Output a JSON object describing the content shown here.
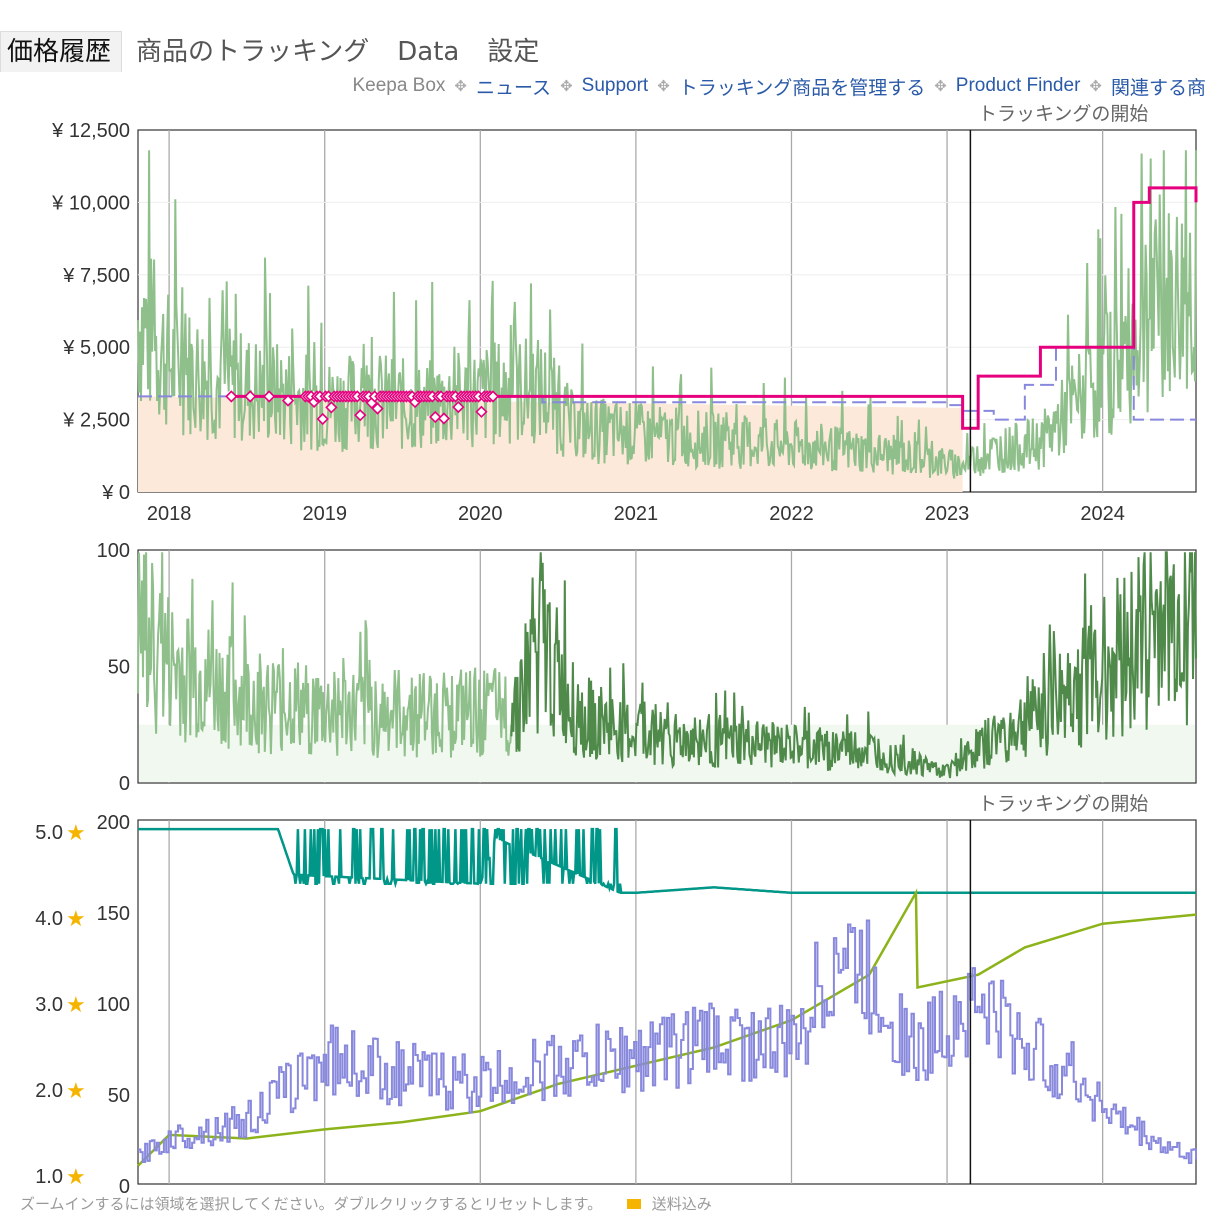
{
  "tabs": [
    {
      "label": "価格履歴",
      "active": true
    },
    {
      "label": "商品のトラッキング",
      "active": false
    },
    {
      "label": "Data",
      "active": false
    },
    {
      "label": "設定",
      "active": false
    }
  ],
  "links": {
    "keepa_box": "Keepa Box",
    "news": "ニュース",
    "support": "Support",
    "manage": "トラッキング商品を管理する",
    "finder": "Product Finder",
    "related": "関連する商"
  },
  "annotations": {
    "tracking_start_top": "トラッキングの開始",
    "tracking_start_bottom": "トラッキングの開始"
  },
  "footer": {
    "hint": "ズームインするには領域を選択してください。ダブルクリックするとリセットします。",
    "legend_shipping": "送料込み"
  },
  "colors": {
    "used_price": "#8fbf8a",
    "new_price": "#e6007e",
    "amazon_price": "#8888dd",
    "amazon_fill": "#fde9d9",
    "sales_rank_light": "#8fbf8a",
    "sales_rank_dark": "#4f8a4a",
    "rating": "#009688",
    "review_count": "#8cb31a",
    "offer_count": "#8888dd",
    "star": "#f5b400"
  },
  "chart_data": [
    {
      "type": "line",
      "name": "price-history",
      "x_ticks": [
        "2018",
        "2019",
        "2020",
        "2021",
        "2022",
        "2023",
        "2024"
      ],
      "y_ticks": [
        "¥ 0",
        "¥ 2,500",
        "¥ 5,000",
        "¥ 7,500",
        "¥ 10,000",
        "¥ 12,500"
      ],
      "ylim": [
        0,
        12500
      ],
      "xlim": [
        2017.8,
        2024.6
      ],
      "tracking_start": 2023.15,
      "series": [
        {
          "role": "used",
          "x": [
            2017.8,
            2018.0,
            2018.3,
            2018.6,
            2019.0,
            2019.3,
            2019.6,
            2020.0,
            2020.2,
            2020.4,
            2020.6,
            2021.0,
            2021.5,
            2022.0,
            2022.5,
            2023.0,
            2023.1,
            2023.3,
            2023.6,
            2023.9,
            2024.1,
            2024.3,
            2024.6
          ],
          "y": [
            6000,
            4500,
            3800,
            3500,
            3000,
            3200,
            2900,
            3300,
            3500,
            3500,
            2200,
            2000,
            1800,
            1600,
            1400,
            1000,
            900,
            1400,
            1700,
            3500,
            4500,
            6000,
            7000
          ]
        },
        {
          "role": "amazon",
          "x": [
            2017.8,
            2020.3,
            2020.4,
            2023.0,
            2023.1,
            2023.3,
            2023.5,
            2023.7,
            2024.2,
            2024.6
          ],
          "y": [
            3300,
            3300,
            3100,
            3000,
            2800,
            2500,
            3700,
            5000,
            2500,
            2500
          ]
        },
        {
          "role": "new",
          "x": [
            2018.4,
            2019.0,
            2019.3,
            2019.6,
            2020.0,
            2020.3,
            2020.5,
            2021.0,
            2022.0,
            2022.9,
            2023.1,
            2023.2,
            2023.4,
            2023.6,
            2024.2,
            2024.3,
            2024.6
          ],
          "y": [
            3300,
            3300,
            3300,
            3300,
            3300,
            3300,
            3300,
            3300,
            3300,
            3300,
            2200,
            4000,
            4000,
            5000,
            10000,
            10500,
            10000
          ]
        }
      ]
    },
    {
      "type": "area",
      "name": "sales-rank",
      "x_ticks": [
        "2018",
        "2019",
        "2020",
        "2021",
        "2022",
        "2023",
        "2024"
      ],
      "y_ticks": [
        "0",
        "50",
        "100"
      ],
      "ylim": [
        0,
        100
      ],
      "series": [
        {
          "role": "rank",
          "x": [
            2017.8,
            2018.0,
            2018.3,
            2018.6,
            2019.0,
            2019.4,
            2019.8,
            2020.2,
            2020.4,
            2020.6,
            2021.0,
            2021.5,
            2022.0,
            2022.5,
            2023.0,
            2023.2,
            2023.5,
            2023.8,
            2024.1,
            2024.3,
            2024.6
          ],
          "y": [
            65,
            50,
            40,
            35,
            30,
            30,
            30,
            30,
            60,
            30,
            20,
            18,
            15,
            14,
            5,
            15,
            25,
            40,
            55,
            65,
            70
          ]
        }
      ]
    },
    {
      "type": "line",
      "name": "ratings-reviews-offers",
      "x_ticks": [
        "2018",
        "2019",
        "2020",
        "2021",
        "2022",
        "2023",
        "2024"
      ],
      "y_ticks_left_rating": [
        "1.0",
        "2.0",
        "3.0",
        "4.0",
        "5.0"
      ],
      "y_ticks_left_count": [
        "0",
        "50",
        "100",
        "150",
        "200"
      ],
      "ylim_count": [
        0,
        200
      ],
      "ylim_rating": [
        1,
        5
      ],
      "tracking_start": 2023.15,
      "series": [
        {
          "role": "rating",
          "x": [
            2017.8,
            2018.7,
            2018.8,
            2020.0,
            2020.1,
            2020.9,
            2021.0,
            2021.5,
            2022.0,
            2022.5,
            2022.8,
            2023.0,
            2023.5,
            2024.0,
            2024.6
          ],
          "y": [
            195,
            195,
            170,
            165,
            190,
            160,
            160,
            163,
            160,
            160,
            160,
            160,
            160,
            160,
            160
          ]
        },
        {
          "role": "reviews",
          "x": [
            2017.8,
            2018.0,
            2018.5,
            2019.0,
            2019.5,
            2020.0,
            2020.5,
            2021.0,
            2021.5,
            2022.0,
            2022.5,
            2022.8,
            2022.81,
            2023.2,
            2023.5,
            2024.0,
            2024.6
          ],
          "y": [
            10,
            27,
            25,
            30,
            34,
            40,
            55,
            65,
            75,
            90,
            115,
            160,
            108,
            115,
            130,
            143,
            148
          ]
        },
        {
          "role": "offers",
          "x": [
            2017.8,
            2018.0,
            2018.5,
            2019.0,
            2019.5,
            2020.0,
            2020.5,
            2021.0,
            2021.5,
            2022.0,
            2022.3,
            2022.6,
            2022.8,
            2023.0,
            2023.2,
            2023.5,
            2023.8,
            2024.1,
            2024.4,
            2024.6
          ],
          "y": [
            15,
            25,
            35,
            70,
            60,
            55,
            65,
            70,
            80,
            75,
            130,
            100,
            70,
            90,
            100,
            75,
            60,
            35,
            20,
            15
          ]
        }
      ]
    }
  ]
}
